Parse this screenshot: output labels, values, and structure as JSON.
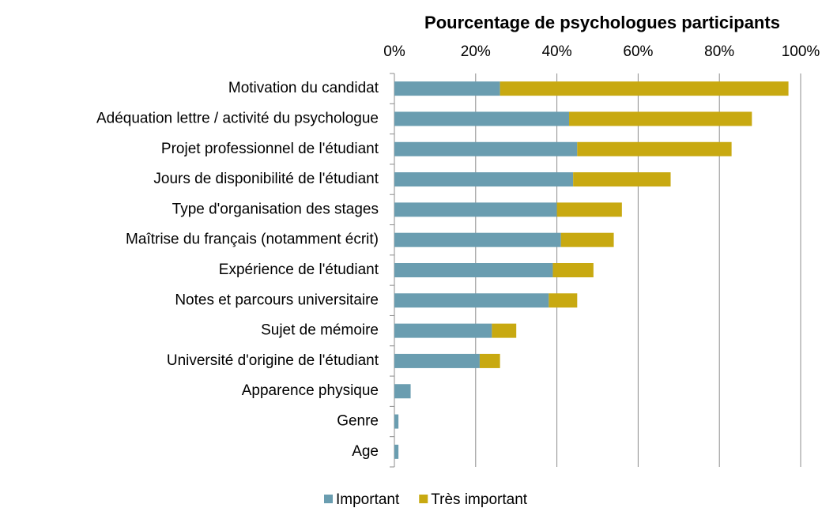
{
  "chart_data": {
    "type": "bar",
    "orientation": "horizontal",
    "stacked": true,
    "title": "Pourcentage de psychologues participants",
    "categories": [
      "Motivation du candidat",
      "Adéquation lettre / activité du psychologue",
      "Projet professionnel de l'étudiant",
      "Jours de disponibilité de l'étudiant",
      "Type d'organisation des stages",
      "Maîtrise du français (notamment écrit)",
      "Expérience de l'étudiant",
      "Notes et parcours universitaire",
      "Sujet de mémoire",
      "Université d'origine de l'étudiant",
      "Apparence physique",
      "Genre",
      "Age"
    ],
    "series": [
      {
        "name": "Important",
        "color": "#6a9db0",
        "values": [
          26,
          43,
          45,
          44,
          40,
          41,
          39,
          38,
          24,
          21,
          4,
          1,
          1
        ]
      },
      {
        "name": "Très important",
        "color": "#c8a911",
        "values": [
          71,
          45,
          38,
          24,
          16,
          13,
          10,
          7,
          6,
          5,
          0,
          0,
          0
        ]
      }
    ],
    "xlim": [
      0,
      100
    ],
    "xticks": [
      {
        "value": 0,
        "label": "0%"
      },
      {
        "value": 20,
        "label": "20%"
      },
      {
        "value": 40,
        "label": "40%"
      },
      {
        "value": 60,
        "label": "60%"
      },
      {
        "value": 80,
        "label": "80%"
      },
      {
        "value": 100,
        "label": "100%"
      }
    ],
    "grid": true,
    "legend": "bottom"
  }
}
